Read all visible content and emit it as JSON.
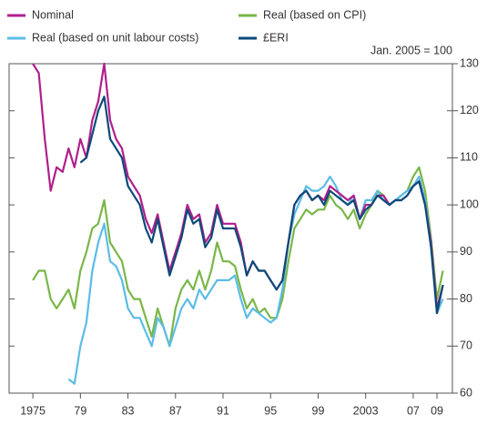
{
  "chart_data": {
    "type": "line",
    "annotation": "Jan. 2005 = 100",
    "x": [
      1975,
      1975.5,
      1976,
      1976.5,
      1977,
      1977.5,
      1978,
      1978.5,
      1979,
      1979.5,
      1980,
      1980.5,
      1981,
      1981.5,
      1982,
      1982.5,
      1983,
      1983.5,
      1984,
      1984.5,
      1985,
      1985.5,
      1986,
      1986.5,
      1987,
      1987.5,
      1988,
      1988.5,
      1989,
      1989.5,
      1990,
      1990.5,
      1991,
      1991.5,
      1992,
      1992.5,
      1993,
      1993.5,
      1994,
      1994.5,
      1995,
      1995.5,
      1996,
      1996.5,
      1997,
      1997.5,
      1998,
      1998.5,
      1999,
      1999.5,
      2000,
      2000.5,
      2001,
      2001.5,
      2002,
      2002.5,
      2003,
      2003.5,
      2004,
      2004.5,
      2005,
      2005.5,
      2006,
      2006.5,
      2007,
      2007.5,
      2008,
      2008.5,
      2009,
      2009.5
    ],
    "series": [
      {
        "name": "Nominal",
        "color": "#b01f8c",
        "values": [
          130,
          128,
          114,
          103,
          108,
          107,
          112,
          108,
          114,
          110,
          118,
          122,
          130,
          118,
          114,
          112,
          106,
          104,
          102,
          97,
          94,
          98,
          92,
          86,
          90,
          94,
          100,
          97,
          98,
          92,
          94,
          100,
          96,
          96,
          96,
          92,
          85,
          88,
          86,
          86,
          84,
          82,
          84,
          92,
          100,
          102,
          103,
          101,
          102,
          101,
          104,
          103,
          102,
          101,
          102,
          97,
          100,
          100,
          102,
          102,
          100,
          101,
          101,
          102,
          104,
          105,
          100,
          92,
          78,
          83
        ]
      },
      {
        "name": "Real (based on unit labour costs)",
        "color": "#5bbce6",
        "values": [
          null,
          null,
          null,
          null,
          null,
          null,
          63,
          62,
          70,
          75,
          86,
          92,
          96,
          88,
          87,
          84,
          78,
          76,
          76,
          73,
          70,
          76,
          74,
          70,
          74,
          78,
          80,
          78,
          82,
          80,
          82,
          84,
          84,
          84,
          85,
          80,
          76,
          78,
          77,
          76,
          75,
          76,
          82,
          92,
          98,
          101,
          104,
          103,
          103,
          104,
          106,
          104,
          101,
          100,
          102,
          97,
          101,
          101,
          103,
          101,
          100,
          101,
          102,
          103,
          104,
          106,
          101,
          92,
          77,
          80
        ]
      },
      {
        "name": "Real (based on CPI)",
        "color": "#7ab648",
        "values": [
          84,
          86,
          86,
          80,
          78,
          80,
          82,
          78,
          86,
          90,
          95,
          96,
          101,
          92,
          90,
          88,
          82,
          80,
          80,
          76,
          72,
          78,
          74,
          70,
          78,
          82,
          84,
          82,
          86,
          82,
          86,
          92,
          88,
          88,
          87,
          82,
          78,
          80,
          77,
          78,
          76,
          76,
          80,
          88,
          95,
          97,
          99,
          98,
          99,
          99,
          102,
          100,
          99,
          97,
          99,
          95,
          98,
          100,
          103,
          102,
          100,
          101,
          102,
          103,
          106,
          108,
          103,
          93,
          80,
          86
        ]
      },
      {
        "name": "£ERI",
        "color": "#0b4a7a",
        "values": [
          null,
          null,
          null,
          null,
          null,
          null,
          null,
          null,
          109,
          110,
          115,
          120,
          123,
          114,
          112,
          110,
          104,
          102,
          100,
          95,
          92,
          97,
          91,
          85,
          89,
          93,
          99,
          96,
          97,
          91,
          93,
          99,
          95,
          95,
          95,
          91,
          85,
          88,
          86,
          86,
          84,
          82,
          84,
          92,
          100,
          102,
          103,
          101,
          102,
          100,
          103,
          102,
          101,
          100,
          101,
          97,
          99,
          100,
          102,
          101,
          100,
          101,
          101,
          102,
          104,
          105,
          100,
          91,
          77,
          83
        ]
      }
    ],
    "xlim": [
      1973,
      2010.3
    ],
    "xticks": [
      {
        "value": 1975,
        "label": "1975"
      },
      {
        "value": 1979,
        "label": "79"
      },
      {
        "value": 1983,
        "label": "83"
      },
      {
        "value": 1987,
        "label": "87"
      },
      {
        "value": 1991,
        "label": "91"
      },
      {
        "value": 1995,
        "label": "95"
      },
      {
        "value": 1999,
        "label": "99"
      },
      {
        "value": 2003,
        "label": "2003"
      },
      {
        "value": 2007,
        "label": "07"
      },
      {
        "value": 2009,
        "label": "09"
      }
    ],
    "ylim": [
      60,
      130
    ],
    "yticks": [
      60,
      70,
      80,
      90,
      100,
      110,
      120,
      130
    ],
    "yaxis_side": "right"
  }
}
